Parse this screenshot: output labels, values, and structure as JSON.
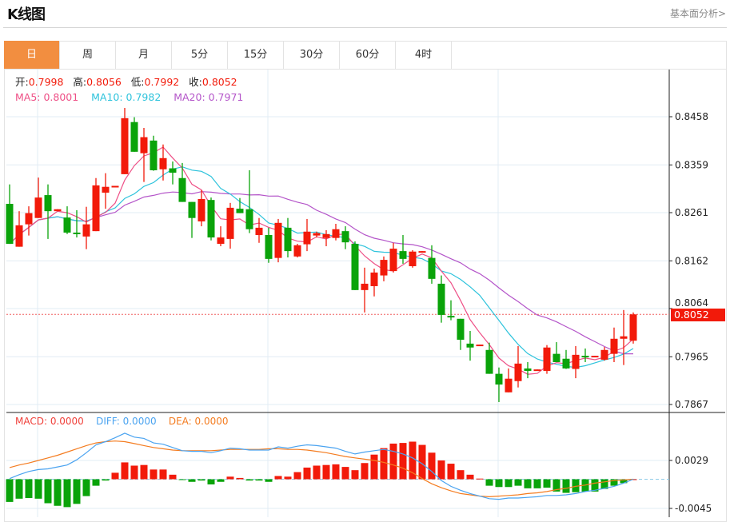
{
  "header": {
    "title": "K线图",
    "link": "基本面分析>"
  },
  "tabs": [
    {
      "label": "日",
      "active": true
    },
    {
      "label": "周"
    },
    {
      "label": "月"
    },
    {
      "label": "5分"
    },
    {
      "label": "15分"
    },
    {
      "label": "30分"
    },
    {
      "label": "60分"
    },
    {
      "label": "4时"
    }
  ],
  "legend": {
    "open_label": "开:",
    "open": "0.7998",
    "high_label": "高:",
    "high": "0.8056",
    "low_label": "低:",
    "low": "0.7992",
    "close_label": "收:",
    "close": "0.8052",
    "ma5": "MA5: 0.8001",
    "ma10": "MA10: 0.7982",
    "ma20": "MA20: 0.7971"
  },
  "macd_legend": {
    "macd": "MACD: 0.0000",
    "diff": "DIFF: 0.0000",
    "dea": "DEA: 0.0000"
  },
  "current_price": "0.8052",
  "colors": {
    "up": "#f21a0a",
    "down": "#0aa30a",
    "ma5": "#ee4f86",
    "ma10": "#2ec3dc",
    "ma20": "#b455c9",
    "diff": "#4aa3f0",
    "dea": "#f47c20",
    "accent": "#f28e40"
  },
  "chart_data": [
    {
      "type": "candlestick",
      "title": "K线图",
      "yticks": [
        "0.8458",
        "0.8359",
        "0.8261",
        "0.8162",
        "0.8064",
        "0.7965",
        "0.7867"
      ],
      "ylim": [
        0.7867,
        0.8458
      ],
      "grid": true,
      "ma_periods": [
        5,
        10,
        20
      ],
      "ohlc": [
        [
          0.8279,
          0.8319,
          0.8197,
          0.8197
        ],
        [
          0.8191,
          0.8264,
          0.8191,
          0.8235
        ],
        [
          0.8237,
          0.8274,
          0.8214,
          0.826
        ],
        [
          0.825,
          0.8333,
          0.825,
          0.8292
        ],
        [
          0.8297,
          0.8319,
          0.8207,
          0.8264
        ],
        [
          0.8264,
          0.8268,
          0.8264,
          0.8268
        ],
        [
          0.8251,
          0.8274,
          0.8217,
          0.822
        ],
        [
          0.822,
          0.8266,
          0.821,
          0.8219
        ],
        [
          0.8212,
          0.8273,
          0.8186,
          0.8237
        ],
        [
          0.8223,
          0.8332,
          0.8223,
          0.8317
        ],
        [
          0.8302,
          0.8342,
          0.8269,
          0.8314
        ],
        [
          0.8315,
          0.8316,
          0.8315,
          0.8316
        ],
        [
          0.834,
          0.8476,
          0.834,
          0.8455
        ],
        [
          0.8447,
          0.8457,
          0.8386,
          0.8386
        ],
        [
          0.8383,
          0.8435,
          0.8324,
          0.8416
        ],
        [
          0.8409,
          0.8419,
          0.8347,
          0.8348
        ],
        [
          0.835,
          0.8401,
          0.8327,
          0.8373
        ],
        [
          0.8352,
          0.8366,
          0.8319,
          0.8343
        ],
        [
          0.8332,
          0.8363,
          0.8283,
          0.8283
        ],
        [
          0.8283,
          0.8283,
          0.8209,
          0.825
        ],
        [
          0.8243,
          0.8307,
          0.8233,
          0.8289
        ],
        [
          0.8287,
          0.8292,
          0.8204,
          0.821
        ],
        [
          0.8197,
          0.8233,
          0.8192,
          0.821
        ],
        [
          0.8207,
          0.8281,
          0.8187,
          0.8271
        ],
        [
          0.8269,
          0.8291,
          0.826,
          0.826
        ],
        [
          0.8268,
          0.8348,
          0.8219,
          0.8227
        ],
        [
          0.8215,
          0.825,
          0.8199,
          0.823
        ],
        [
          0.8215,
          0.823,
          0.8158,
          0.8166
        ],
        [
          0.8168,
          0.8248,
          0.8159,
          0.824
        ],
        [
          0.823,
          0.825,
          0.8169,
          0.8182
        ],
        [
          0.8171,
          0.8197,
          0.8169,
          0.8194
        ],
        [
          0.8196,
          0.8248,
          0.8182,
          0.8222
        ],
        [
          0.8214,
          0.8222,
          0.821,
          0.8219
        ],
        [
          0.8209,
          0.8225,
          0.8192,
          0.8217
        ],
        [
          0.8209,
          0.8238,
          0.8204,
          0.8227
        ],
        [
          0.8223,
          0.8233,
          0.8186,
          0.82
        ],
        [
          0.8197,
          0.8202,
          0.8102,
          0.8102
        ],
        [
          0.8102,
          0.8148,
          0.8056,
          0.8115
        ],
        [
          0.811,
          0.8146,
          0.8089,
          0.8138
        ],
        [
          0.8132,
          0.8171,
          0.812,
          0.8164
        ],
        [
          0.8141,
          0.8199,
          0.8138,
          0.8187
        ],
        [
          0.8182,
          0.8215,
          0.8156,
          0.8166
        ],
        [
          0.8151,
          0.8184,
          0.8148,
          0.8181
        ],
        [
          0.8181,
          0.8182,
          0.8181,
          0.8182
        ],
        [
          0.8168,
          0.8194,
          0.8115,
          0.8125
        ],
        [
          0.8115,
          0.8132,
          0.8035,
          0.8051
        ],
        [
          0.8049,
          0.8081,
          0.804,
          0.8046
        ],
        [
          0.8043,
          0.8043,
          0.7979,
          0.8
        ],
        [
          0.7992,
          0.8018,
          0.7957,
          0.7984
        ],
        [
          0.7989,
          0.799,
          0.7989,
          0.799
        ],
        [
          0.7979,
          0.7994,
          0.793,
          0.793
        ],
        [
          0.793,
          0.7943,
          0.7872,
          0.7908
        ],
        [
          0.7892,
          0.7941,
          0.7892,
          0.792
        ],
        [
          0.7915,
          0.7987,
          0.7902,
          0.7951
        ],
        [
          0.7941,
          0.7954,
          0.7921,
          0.7936
        ],
        [
          0.7938,
          0.7939,
          0.7938,
          0.7939
        ],
        [
          0.7936,
          0.7989,
          0.793,
          0.7984
        ],
        [
          0.7971,
          0.7995,
          0.7954,
          0.7954
        ],
        [
          0.7961,
          0.7979,
          0.794,
          0.7941
        ],
        [
          0.794,
          0.7987,
          0.7921,
          0.7969
        ],
        [
          0.7967,
          0.7982,
          0.7954,
          0.7964
        ],
        [
          0.7966,
          0.7967,
          0.7966,
          0.7967
        ],
        [
          0.7959,
          0.7985,
          0.7957,
          0.7979
        ],
        [
          0.7971,
          0.8025,
          0.7954,
          0.8002
        ],
        [
          0.8002,
          0.8061,
          0.7948,
          0.8007
        ],
        [
          0.7998,
          0.8056,
          0.7992,
          0.8052
        ]
      ]
    },
    {
      "type": "bar+line",
      "title": "MACD",
      "yticks": [
        "0.0029",
        "-0.0045"
      ],
      "ylim": [
        -0.0045,
        0.0029
      ],
      "macd": [
        -0.0035,
        -0.003,
        -0.0029,
        -0.003,
        -0.0037,
        -0.0041,
        -0.0043,
        -0.0038,
        -0.0026,
        -0.001,
        -0.0002,
        0.001,
        0.0026,
        0.0021,
        0.0022,
        0.0015,
        0.0015,
        0.0007,
        -0.0001,
        -0.0004,
        -0.0002,
        -0.0008,
        -0.0004,
        0.0004,
        0.0002,
        -0.0002,
        -0.0002,
        -0.0004,
        0.0005,
        0.0004,
        0.0011,
        0.0018,
        0.0021,
        0.0022,
        0.0023,
        0.0019,
        0.0014,
        0.0025,
        0.0038,
        0.0048,
        0.0055,
        0.0056,
        0.0058,
        0.0053,
        0.0041,
        0.0029,
        0.0024,
        0.0014,
        0.0007,
        0.0001,
        -0.001,
        -0.0012,
        -0.0012,
        -0.001,
        -0.0014,
        -0.0014,
        -0.0013,
        -0.0019,
        -0.0021,
        -0.002,
        -0.0019,
        -0.0019,
        -0.0015,
        -0.001,
        -0.0006,
        0.0
      ],
      "diff": [
        0.0001,
        0.0007,
        0.0012,
        0.0015,
        0.0016,
        0.0019,
        0.0022,
        0.003,
        0.0041,
        0.0053,
        0.0058,
        0.0064,
        0.0071,
        0.0065,
        0.0063,
        0.0056,
        0.0054,
        0.0049,
        0.0044,
        0.0043,
        0.0043,
        0.0041,
        0.0044,
        0.0048,
        0.0047,
        0.0045,
        0.0045,
        0.0045,
        0.005,
        0.0048,
        0.0051,
        0.0053,
        0.0052,
        0.005,
        0.0048,
        0.0043,
        0.0039,
        0.0042,
        0.0044,
        0.0046,
        0.0043,
        0.0039,
        0.0033,
        0.0024,
        0.0012,
        -0.0002,
        -0.0011,
        -0.0017,
        -0.0022,
        -0.0026,
        -0.003,
        -0.0031,
        -0.0029,
        -0.0029,
        -0.0028,
        -0.0027,
        -0.0025,
        -0.0025,
        -0.0024,
        -0.0022,
        -0.0019,
        -0.0017,
        -0.0014,
        -0.0011,
        -0.0006,
        0.0
      ],
      "dea": [
        0.0018,
        0.0022,
        0.0025,
        0.0029,
        0.0033,
        0.0037,
        0.0042,
        0.0047,
        0.0052,
        0.0056,
        0.0058,
        0.0059,
        0.0058,
        0.0055,
        0.0052,
        0.0049,
        0.0047,
        0.0045,
        0.0044,
        0.0044,
        0.0044,
        0.0044,
        0.0045,
        0.0046,
        0.0046,
        0.0046,
        0.0046,
        0.0047,
        0.0047,
        0.0046,
        0.0046,
        0.0045,
        0.0043,
        0.0041,
        0.0038,
        0.0035,
        0.0033,
        0.0031,
        0.0029,
        0.0026,
        0.0022,
        0.0017,
        0.001,
        0.0001,
        -0.0007,
        -0.0013,
        -0.0018,
        -0.0022,
        -0.0024,
        -0.0026,
        -0.0027,
        -0.0026,
        -0.0025,
        -0.0024,
        -0.0022,
        -0.0021,
        -0.0019,
        -0.0016,
        -0.0014,
        -0.0011,
        -0.0009,
        -0.0006,
        -0.0004,
        -0.0002,
        -0.0001,
        0.0
      ]
    }
  ]
}
